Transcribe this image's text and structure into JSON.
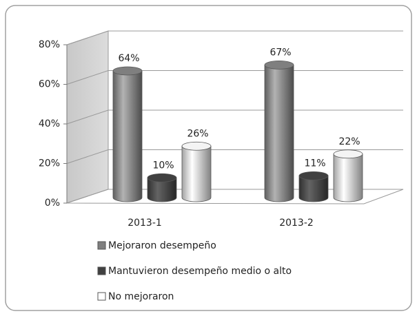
{
  "chart_data": {
    "type": "bar3d",
    "categories": [
      "2013-1",
      "2013-2"
    ],
    "series": [
      {
        "name": "Mejoraron desempeño",
        "color": "#7f7f7f",
        "values": [
          64,
          67
        ],
        "value_labels": [
          "64%",
          "67%"
        ]
      },
      {
        "name": "Mantuvieron desempeño medio o alto",
        "color": "#404040",
        "values": [
          10,
          11
        ],
        "value_labels": [
          "10%",
          "11%"
        ]
      },
      {
        "name": "No mejoraron",
        "color": "#ffffff",
        "values": [
          26,
          22
        ],
        "value_labels": [
          "26%",
          "22%"
        ]
      }
    ],
    "ylim": [
      0,
      80
    ],
    "yticks": [
      {
        "value": 0,
        "label": "0%"
      },
      {
        "value": 20,
        "label": "20%"
      },
      {
        "value": 40,
        "label": "40%"
      },
      {
        "value": 60,
        "label": "60%"
      },
      {
        "value": 80,
        "label": "80%"
      }
    ],
    "grid": true
  }
}
